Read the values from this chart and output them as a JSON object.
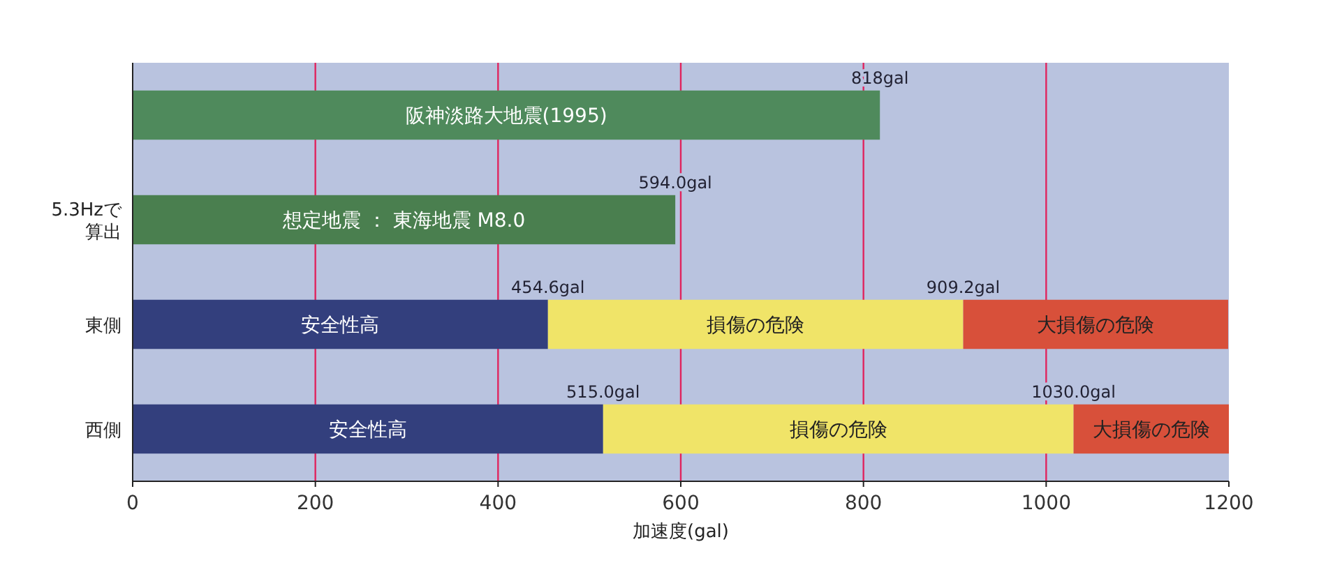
{
  "chart_data": {
    "type": "bar",
    "orientation": "horizontal",
    "stacked": true,
    "categories": [
      null,
      "5.3Hzで算出",
      "東側",
      "西側"
    ],
    "series": [
      {
        "name": "阪神淡路大地震(1995)",
        "color": "#4f8a5c",
        "values": [
          818,
          null,
          null,
          null
        ],
        "value_labels": [
          "818gal",
          null,
          null,
          null
        ]
      },
      {
        "name": "想定地震 ： 東海地震 M8.0",
        "color": "#4a7f4f",
        "values": [
          null,
          594,
          null,
          null
        ],
        "value_labels": [
          null,
          "594.0gal",
          null,
          null
        ]
      },
      {
        "name": "安全性高",
        "color": "#333f7d",
        "values": [
          null,
          null,
          454.6,
          515
        ],
        "value_labels": [
          null,
          null,
          "454.6gal",
          "515.0gal"
        ]
      },
      {
        "name": "損傷の危険",
        "color": "#f0e468",
        "values": [
          null,
          null,
          454.6,
          515
        ]
      },
      {
        "name": "大損傷の危険",
        "color": "#d8503a",
        "values": [
          null,
          null,
          290,
          170
        ]
      }
    ],
    "annotations": [
      {
        "text": "909.2gal",
        "x": 909.2,
        "y": "東側"
      },
      {
        "text": "1030.0gal",
        "x": 1030,
        "y": "西側"
      }
    ],
    "xlim": [
      0,
      1200
    ],
    "xticks": [
      0,
      200,
      400,
      600,
      800,
      1000,
      1200
    ],
    "xlabel": "加速度(gal)",
    "grid": "x"
  }
}
